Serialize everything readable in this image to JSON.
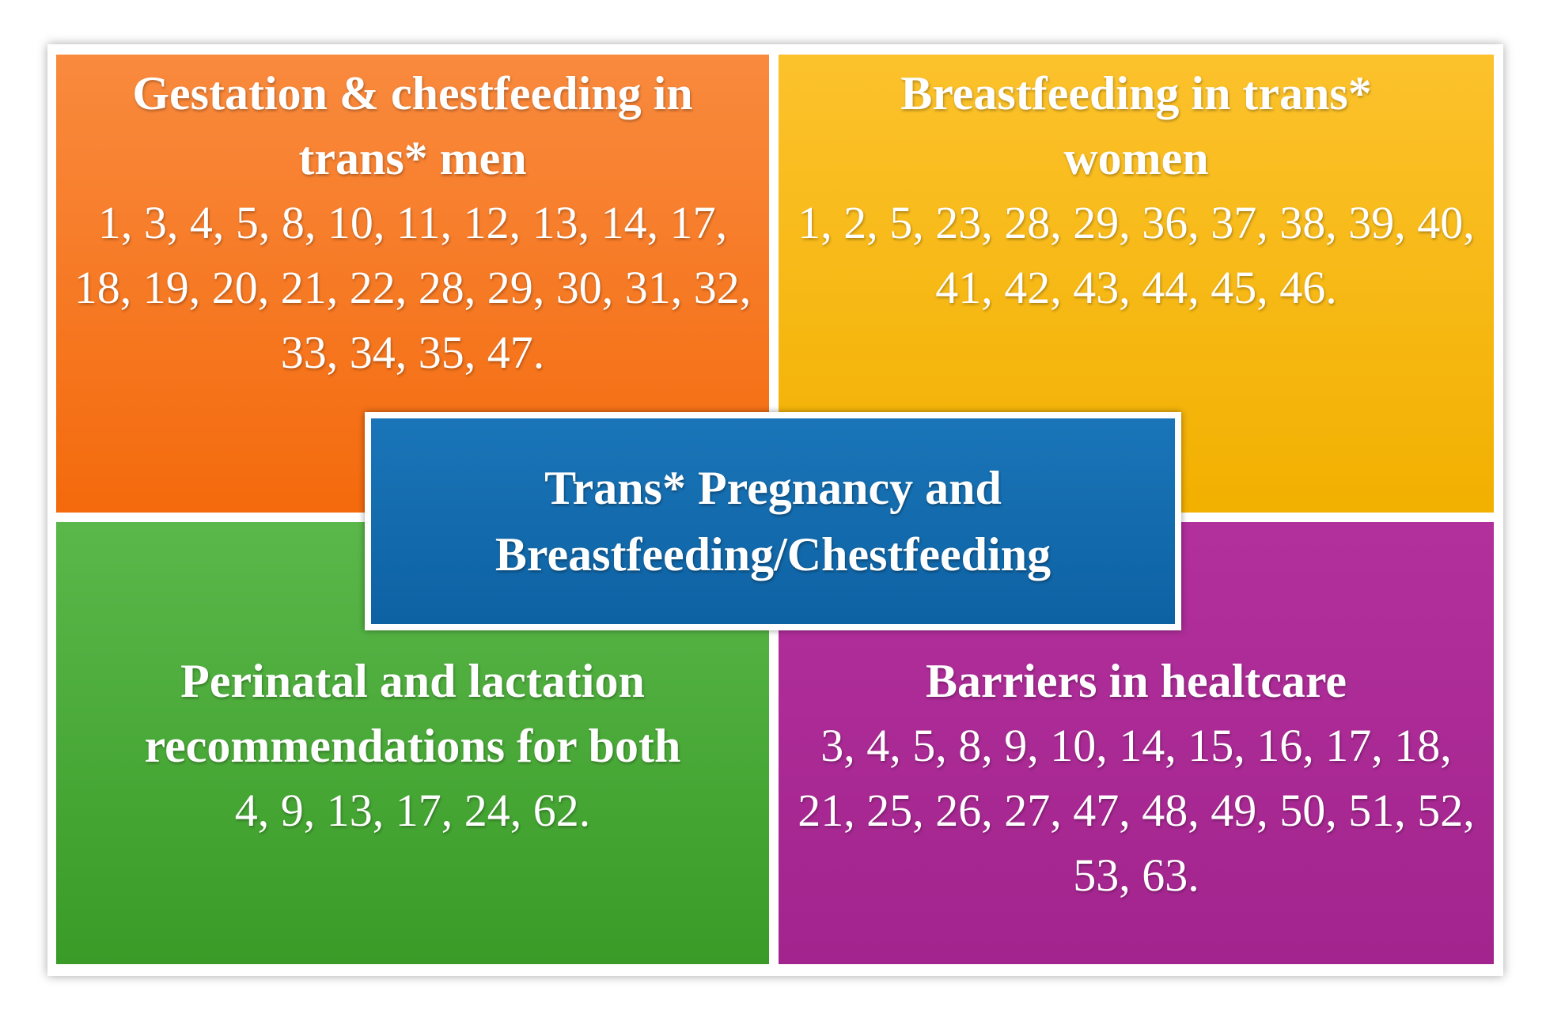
{
  "center": {
    "title": "Trans* Pregnancy and Breastfeeding/Chestfeeding"
  },
  "quadrants": [
    {
      "title": "Gestation & chestfeeding in trans* men",
      "references": "1, 3, 4, 5, 8, 10, 11, 12, 13, 14, 17, 18, 19, 20, 21, 22, 28, 29, 30, 31, 32, 33, 34, 35, 47."
    },
    {
      "title": "Breastfeeding in trans* women",
      "references": "1, 2, 5, 23, 28, 29, 36, 37, 38, 39, 40, 41, 42, 43, 44, 45, 46."
    },
    {
      "title": "Perinatal and lactation recommendations for both",
      "references": "4, 9, 13, 17, 24, 62."
    },
    {
      "title": "Barriers in healtcare",
      "references": "3, 4, 5, 8, 9, 10, 14, 15, 16, 17, 18, 21, 25, 26, 27, 47, 48, 49, 50, 51, 52, 53, 63."
    }
  ]
}
